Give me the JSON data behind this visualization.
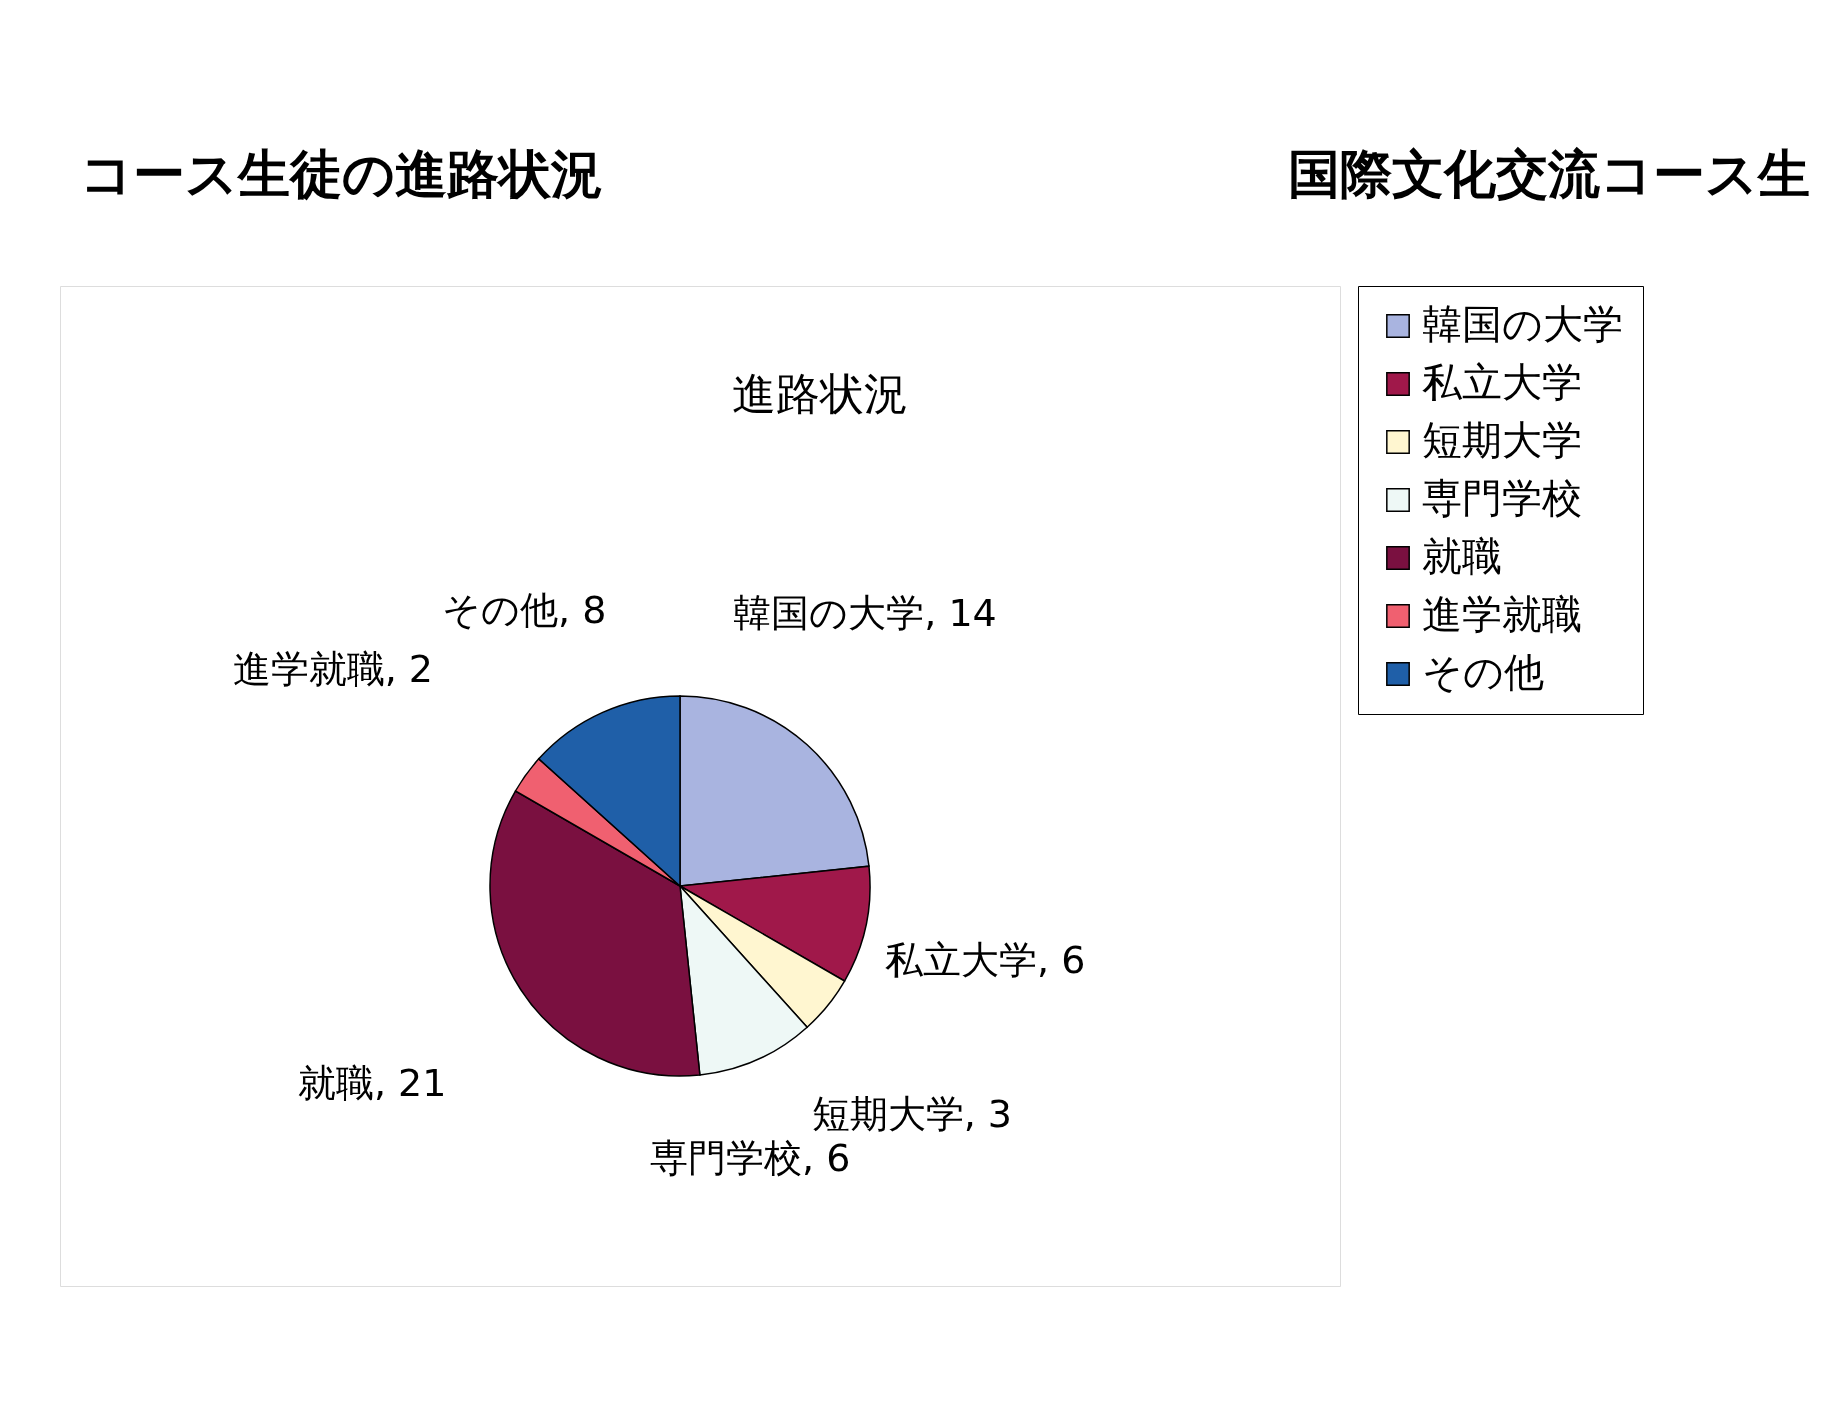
{
  "chart_data": {
    "type": "pie",
    "title": "進路状況",
    "categories": [
      "韓国の大学",
      "私立大学",
      "短期大学",
      "専門学校",
      "就職",
      "進学就職",
      "その他"
    ],
    "values": [
      14,
      6,
      3,
      6,
      21,
      2,
      8
    ],
    "colors": [
      "#a9b4e0",
      "#a0184a",
      "#fff6d0",
      "#eef8f6",
      "#7a1040",
      "#f06070",
      "#1f5fa8"
    ],
    "value_labels": [
      ", 14",
      ", 6",
      ", 3",
      ", 6",
      ", 21",
      ", 2",
      ", 8"
    ],
    "legend": "right",
    "annotations": [
      "コース生徒の進路状況",
      "国際文化交流コース生"
    ]
  }
}
